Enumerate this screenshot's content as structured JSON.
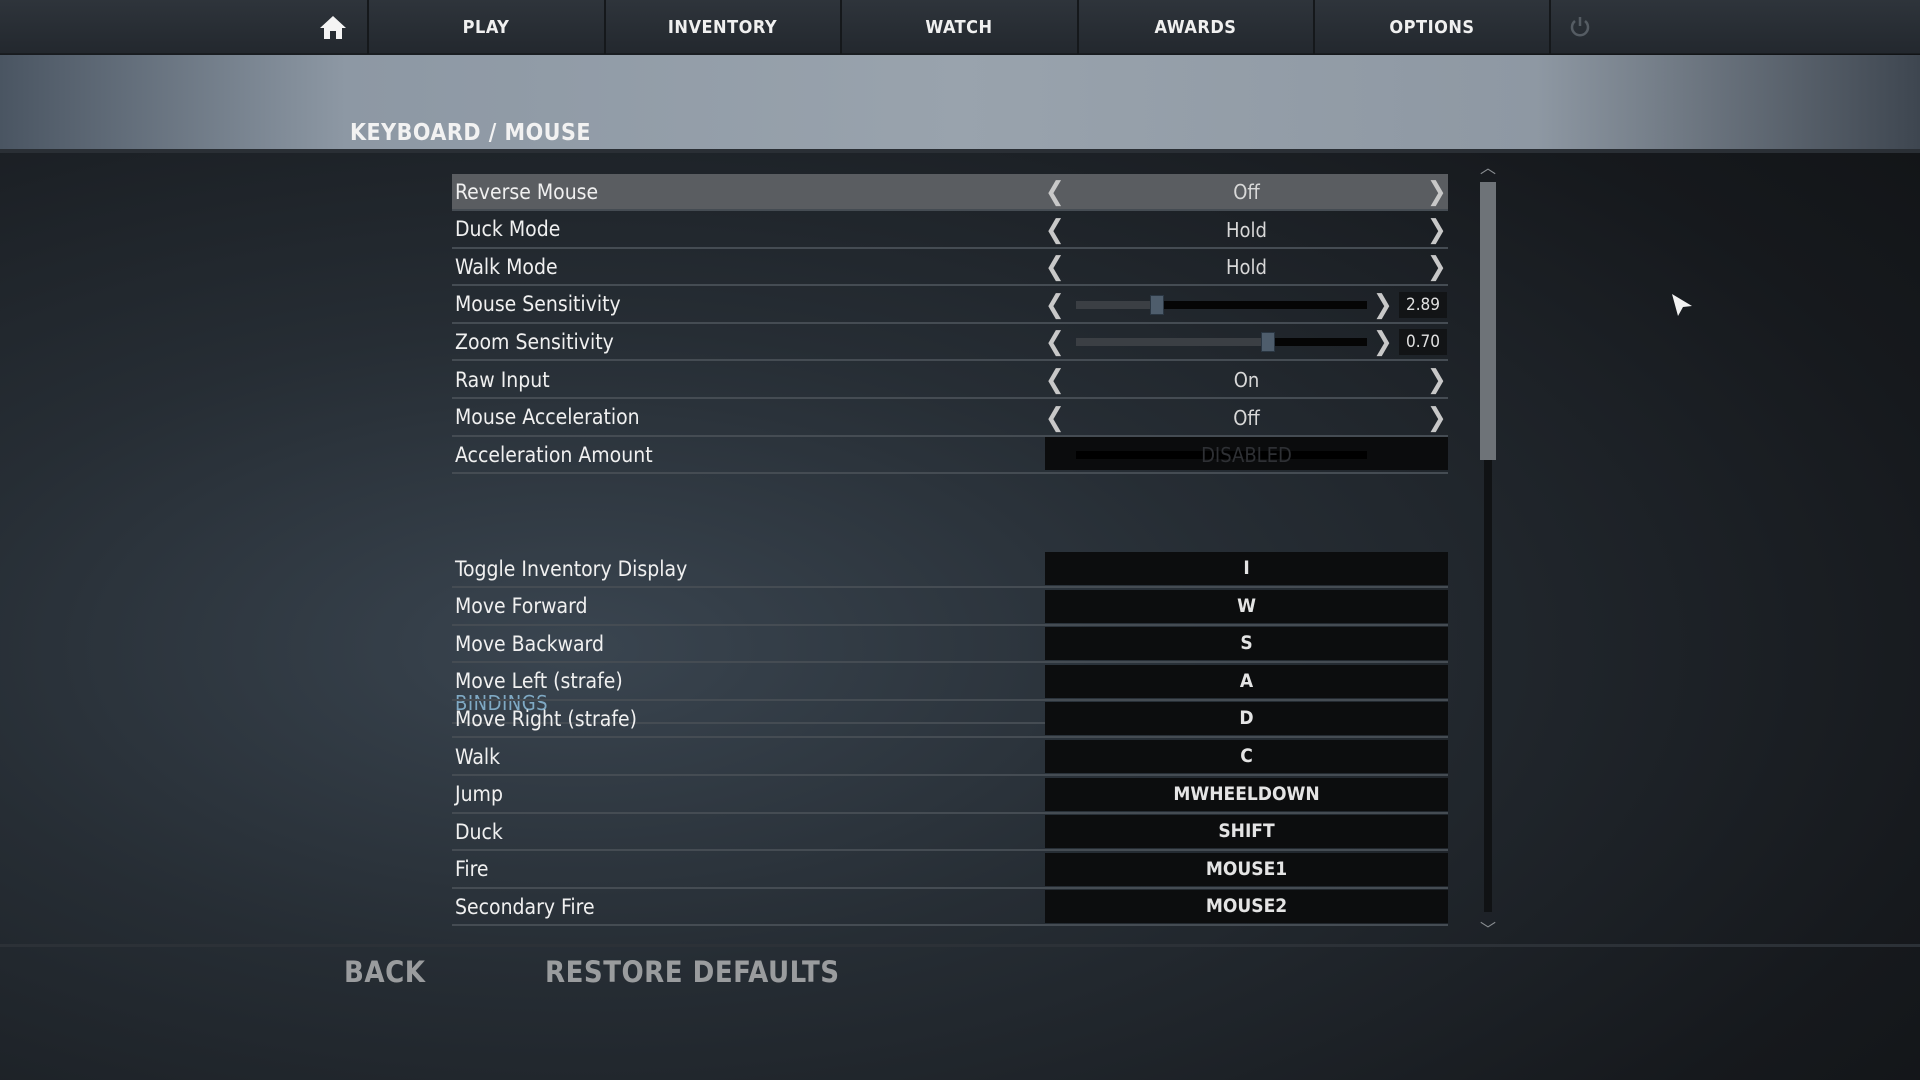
{
  "nav": {
    "items": [
      {
        "label": "PLAY"
      },
      {
        "label": "INVENTORY"
      },
      {
        "label": "WATCH"
      },
      {
        "label": "AWARDS"
      },
      {
        "label": "OPTIONS"
      }
    ],
    "home_icon": "home-icon",
    "power_icon": "power-icon"
  },
  "page": {
    "title": "KEYBOARD / MOUSE"
  },
  "settings": [
    {
      "label": "Reverse Mouse",
      "type": "toggle",
      "value": "Off",
      "selected": true
    },
    {
      "label": "Duck Mode",
      "type": "toggle",
      "value": "Hold"
    },
    {
      "label": "Walk Mode",
      "type": "toggle",
      "value": "Hold"
    },
    {
      "label": "Mouse Sensitivity",
      "type": "slider",
      "value": "2.89",
      "fraction": 0.28
    },
    {
      "label": "Zoom Sensitivity",
      "type": "slider",
      "value": "0.70",
      "fraction": 0.66
    },
    {
      "label": "Raw Input",
      "type": "toggle",
      "value": "On"
    },
    {
      "label": "Mouse Acceleration",
      "type": "toggle",
      "value": "Off"
    },
    {
      "label": "Acceleration Amount",
      "type": "disabled",
      "value": "DISABLED"
    }
  ],
  "bindings": {
    "header": "BINDINGS",
    "items": [
      {
        "label": "Toggle Inventory Display",
        "key": "I"
      },
      {
        "label": "Move Forward",
        "key": "W"
      },
      {
        "label": "Move Backward",
        "key": "S"
      },
      {
        "label": "Move Left (strafe)",
        "key": "A"
      },
      {
        "label": "Move Right (strafe)",
        "key": "D"
      },
      {
        "label": "Walk",
        "key": "C"
      },
      {
        "label": "Jump",
        "key": "MWHEELDOWN"
      },
      {
        "label": "Duck",
        "key": "SHIFT"
      },
      {
        "label": "Fire",
        "key": "MOUSE1"
      },
      {
        "label": "Secondary Fire",
        "key": "MOUSE2"
      }
    ]
  },
  "arrows": {
    "left": "❮",
    "right": "❯"
  },
  "scrollbar": {
    "up": "︿",
    "down": "﹀",
    "position": 0
  },
  "footer": {
    "back": "BACK",
    "restore": "RESTORE DEFAULTS"
  },
  "colors": {
    "accent": "#7fa9c4",
    "selected_row": "#5a5d61"
  }
}
